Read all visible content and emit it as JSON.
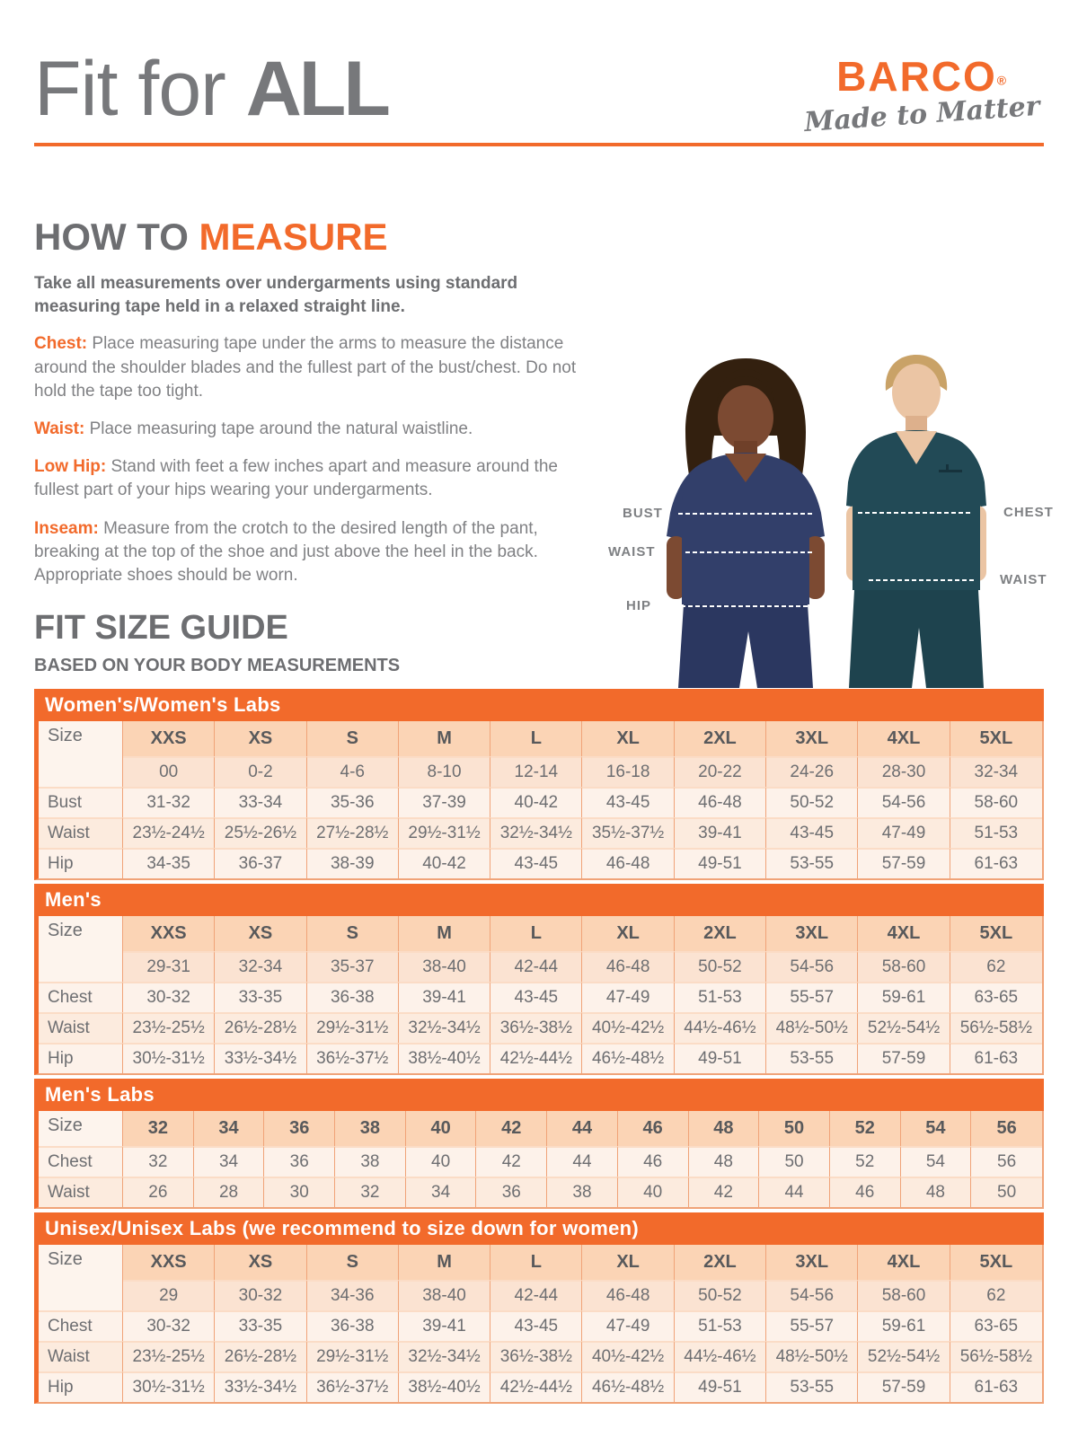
{
  "page": {
    "title_light": "Fit for ",
    "title_bold": "ALL"
  },
  "logo": {
    "brand": "BARCO",
    "registered": "®",
    "tagline": "Made to Matter"
  },
  "colors": {
    "accent_orange": "#F26A2B",
    "text_gray": "#6D6E71"
  },
  "how_to_measure": {
    "heading_gray": "HOW TO ",
    "heading_orange": "MEASURE",
    "intro": "Take all measurements over undergarments using standard measuring tape held in a relaxed straight line.",
    "items": [
      {
        "label": "Chest:",
        "text": " Place measuring tape under the arms to measure the distance around the shoulder blades and the fullest part of the bust/chest. Do not hold the tape too tight."
      },
      {
        "label": "Waist:",
        "text": " Place measuring tape around the natural waistline."
      },
      {
        "label": "Low Hip:",
        "text": " Stand with feet a few inches apart and measure around the fullest part of your hips wearing your undergarments."
      },
      {
        "label": "Inseam:",
        "text": " Measure from the crotch to the desired length of the pant, breaking at the top of the shoe and just above the heel in the back. Appropriate shoes should be worn."
      }
    ]
  },
  "figure": {
    "labels": {
      "bust": "BUST",
      "waist_left": "WAIST",
      "hip": "HIP",
      "chest": "CHEST",
      "waist_right": "WAIST"
    }
  },
  "size_guide": {
    "heading": "FIT SIZE GUIDE",
    "subheading": "BASED ON YOUR BODY MEASUREMENTS"
  },
  "tables": [
    {
      "title": "Women's/Women's Labs",
      "col_label": "Size",
      "size_labels": [
        "XXS",
        "XS",
        "S",
        "M",
        "L",
        "XL",
        "2XL",
        "3XL",
        "4XL",
        "5XL"
      ],
      "numeric_sizes": [
        "00",
        "0-2",
        "4-6",
        "8-10",
        "12-14",
        "16-18",
        "20-22",
        "24-26",
        "28-30",
        "32-34"
      ],
      "rows": [
        {
          "label": "Bust",
          "values": [
            "31-32",
            "33-34",
            "35-36",
            "37-39",
            "40-42",
            "43-45",
            "46-48",
            "50-52",
            "54-56",
            "58-60"
          ]
        },
        {
          "label": "Waist",
          "values": [
            "23½-24½",
            "25½-26½",
            "27½-28½",
            "29½-31½",
            "32½-34½",
            "35½-37½",
            "39-41",
            "43-45",
            "47-49",
            "51-53"
          ]
        },
        {
          "label": "Hip",
          "values": [
            "34-35",
            "36-37",
            "38-39",
            "40-42",
            "43-45",
            "46-48",
            "49-51",
            "53-55",
            "57-59",
            "61-63"
          ]
        }
      ]
    },
    {
      "title": "Men's",
      "col_label": "Size",
      "size_labels": [
        "XXS",
        "XS",
        "S",
        "M",
        "L",
        "XL",
        "2XL",
        "3XL",
        "4XL",
        "5XL"
      ],
      "numeric_sizes": [
        "29-31",
        "32-34",
        "35-37",
        "38-40",
        "42-44",
        "46-48",
        "50-52",
        "54-56",
        "58-60",
        "62"
      ],
      "rows": [
        {
          "label": "Chest",
          "values": [
            "30-32",
            "33-35",
            "36-38",
            "39-41",
            "43-45",
            "47-49",
            "51-53",
            "55-57",
            "59-61",
            "63-65"
          ]
        },
        {
          "label": "Waist",
          "values": [
            "23½-25½",
            "26½-28½",
            "29½-31½",
            "32½-34½",
            "36½-38½",
            "40½-42½",
            "44½-46½",
            "48½-50½",
            "52½-54½",
            "56½-58½"
          ]
        },
        {
          "label": "Hip",
          "values": [
            "30½-31½",
            "33½-34½",
            "36½-37½",
            "38½-40½",
            "42½-44½",
            "46½-48½",
            "49-51",
            "53-55",
            "57-59",
            "61-63"
          ]
        }
      ]
    },
    {
      "title": "Men's Labs",
      "col_label": "Size",
      "size_labels": [
        "32",
        "34",
        "36",
        "38",
        "40",
        "42",
        "44",
        "46",
        "48",
        "50",
        "52",
        "54",
        "56"
      ],
      "rows": [
        {
          "label": "Chest",
          "values": [
            "32",
            "34",
            "36",
            "38",
            "40",
            "42",
            "44",
            "46",
            "48",
            "50",
            "52",
            "54",
            "56"
          ]
        },
        {
          "label": "Waist",
          "values": [
            "26",
            "28",
            "30",
            "32",
            "34",
            "36",
            "38",
            "40",
            "42",
            "44",
            "46",
            "48",
            "50"
          ]
        }
      ]
    },
    {
      "title": "Unisex/Unisex Labs (we recommend to size down for women)",
      "col_label": "Size",
      "size_labels": [
        "XXS",
        "XS",
        "S",
        "M",
        "L",
        "XL",
        "2XL",
        "3XL",
        "4XL",
        "5XL"
      ],
      "numeric_sizes": [
        "29",
        "30-32",
        "34-36",
        "38-40",
        "42-44",
        "46-48",
        "50-52",
        "54-56",
        "58-60",
        "62"
      ],
      "rows": [
        {
          "label": "Chest",
          "values": [
            "30-32",
            "33-35",
            "36-38",
            "39-41",
            "43-45",
            "47-49",
            "51-53",
            "55-57",
            "59-61",
            "63-65"
          ]
        },
        {
          "label": "Waist",
          "values": [
            "23½-25½",
            "26½-28½",
            "29½-31½",
            "32½-34½",
            "36½-38½",
            "40½-42½",
            "44½-46½",
            "48½-50½",
            "52½-54½",
            "56½-58½"
          ]
        },
        {
          "label": "Hip",
          "values": [
            "30½-31½",
            "33½-34½",
            "36½-37½",
            "38½-40½",
            "42½-44½",
            "46½-48½",
            "49-51",
            "53-55",
            "57-59",
            "61-63"
          ]
        }
      ]
    }
  ]
}
